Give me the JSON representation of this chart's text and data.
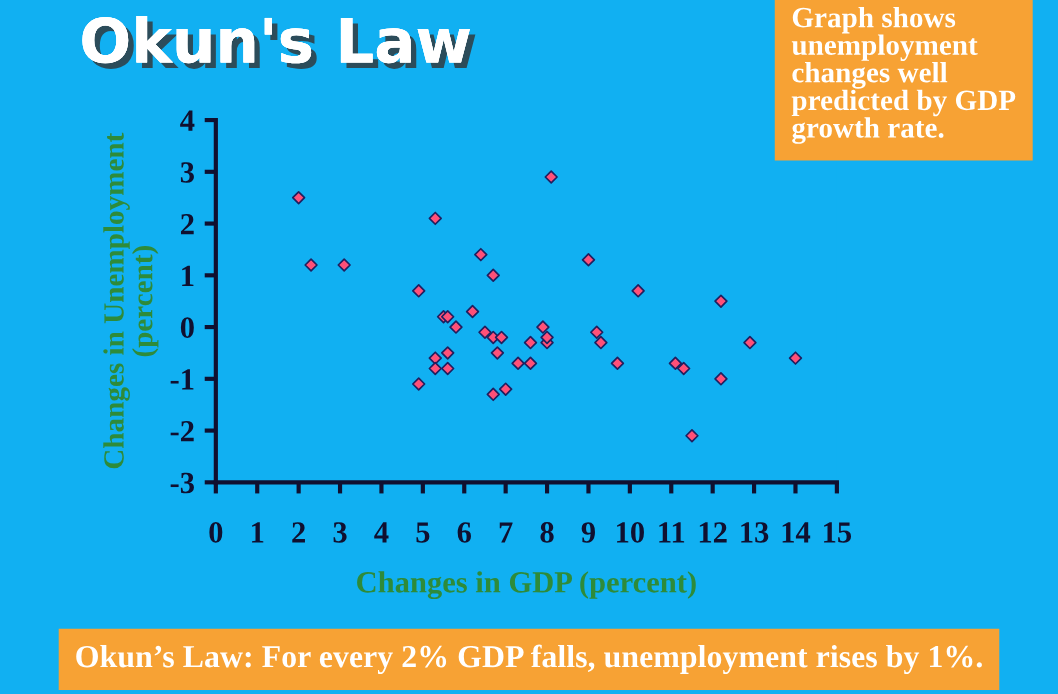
{
  "chart_data": {
    "type": "scatter",
    "title": "Okun's Law",
    "xlabel": "Changes in GDP (percent)",
    "ylabel": "Changes in Unemployment (percent)",
    "annotations": [
      "Graph shows unemployment changes well predicted by GDP growth rate.",
      "Okun’s Law: For every 2% GDP falls, unemployment rises by 1%."
    ],
    "xlim": [
      0,
      15
    ],
    "ylim": [
      -3,
      4
    ],
    "xticks": [
      0,
      1,
      2,
      3,
      4,
      5,
      6,
      7,
      8,
      9,
      10,
      11,
      12,
      13,
      14,
      15
    ],
    "yticks": [
      -3,
      -2,
      -1,
      0,
      1,
      2,
      3,
      4
    ],
    "grid": false,
    "legend": false,
    "marker": "diamond",
    "series": [
      {
        "color": "#ff5078",
        "x": [
          2.0,
          2.3,
          3.1,
          4.9,
          5.3,
          4.9,
          5.3,
          5.3,
          5.6,
          5.6,
          5.5,
          5.6,
          5.8,
          6.2,
          6.4,
          6.7,
          6.5,
          6.7,
          6.9,
          6.8,
          6.7,
          7.0,
          7.3,
          7.6,
          7.6,
          7.9,
          8.0,
          8.0,
          8.1,
          9.0,
          10.2,
          9.2,
          9.3,
          9.7,
          11.1,
          11.3,
          11.5,
          12.2,
          12.2,
          12.9,
          14.0
        ],
        "values": [
          2.5,
          1.2,
          1.2,
          0.7,
          2.1,
          -1.1,
          -0.6,
          -0.8,
          -0.5,
          -0.8,
          0.2,
          0.2,
          0.0,
          0.3,
          1.4,
          1.0,
          -0.1,
          -0.2,
          -0.2,
          -0.5,
          -1.3,
          -1.2,
          -0.7,
          -0.7,
          -0.3,
          0.0,
          -0.3,
          -0.2,
          2.9,
          1.3,
          0.7,
          -0.1,
          -0.3,
          -0.7,
          -0.7,
          -0.8,
          -2.1,
          0.5,
          -1.0,
          -0.3,
          -0.6
        ]
      }
    ]
  }
}
